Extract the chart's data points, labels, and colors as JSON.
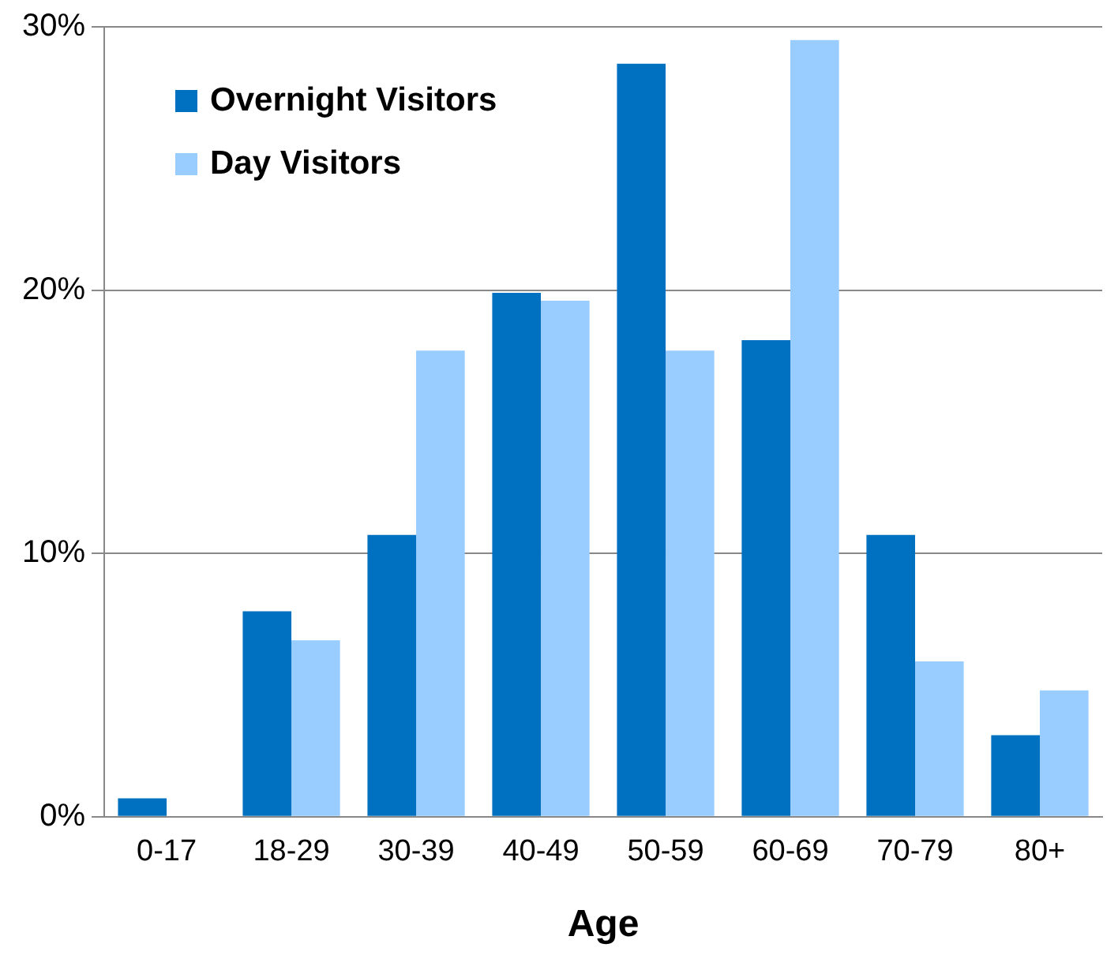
{
  "chart_data": {
    "type": "bar",
    "xlabel": "Age",
    "categories": [
      "0-17",
      "18-29",
      "30-39",
      "40-49",
      "50-59",
      "60-69",
      "70-79",
      "80+"
    ],
    "series": [
      {
        "name": "Overnight Visitors",
        "color": "#0070c0",
        "values": [
          0.7,
          7.8,
          10.7,
          19.9,
          28.6,
          18.1,
          10.7,
          3.1
        ]
      },
      {
        "name": "Day Visitors",
        "color": "#99ccff",
        "values": [
          0,
          6.7,
          17.7,
          19.6,
          17.7,
          29.5,
          5.9,
          4.8
        ]
      }
    ],
    "ylim": [
      0,
      30
    ],
    "yticks": [
      {
        "value": 0,
        "label": "0%"
      },
      {
        "value": 10,
        "label": "10%"
      },
      {
        "value": 20,
        "label": "20%"
      },
      {
        "value": 30,
        "label": "30%"
      }
    ],
    "grid": "y",
    "legend": "top left"
  }
}
